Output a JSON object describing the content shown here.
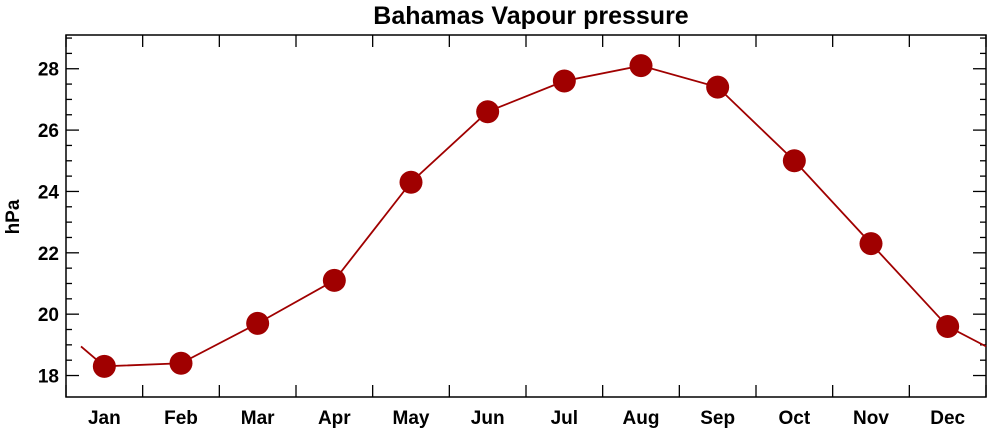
{
  "chart_data": {
    "type": "line",
    "title": "Bahamas Vapour pressure",
    "xlabel": "",
    "ylabel": "hPa",
    "categories": [
      "Jan",
      "Feb",
      "Mar",
      "Apr",
      "May",
      "Jun",
      "Jul",
      "Aug",
      "Sep",
      "Oct",
      "Nov",
      "Dec"
    ],
    "series": [
      {
        "values": [
          18.3,
          18.4,
          19.7,
          21.1,
          24.3,
          26.6,
          27.6,
          28.1,
          27.4,
          25.0,
          22.3,
          19.6
        ],
        "color": "#a00000"
      }
    ],
    "wrap_start_value": 18.95,
    "wrap_end_value": 18.95,
    "ylim": [
      17.3,
      29.1
    ],
    "yticks": [
      18,
      20,
      22,
      24,
      26,
      28
    ],
    "yticks_minor": [
      18.5,
      19,
      19.5,
      20.5,
      21,
      21.5,
      22.5,
      23,
      23.5,
      24.5,
      25,
      25.5,
      26.5,
      27,
      27.5,
      28.5,
      29
    ],
    "marker": "circle",
    "grid": false,
    "legend": false
  }
}
